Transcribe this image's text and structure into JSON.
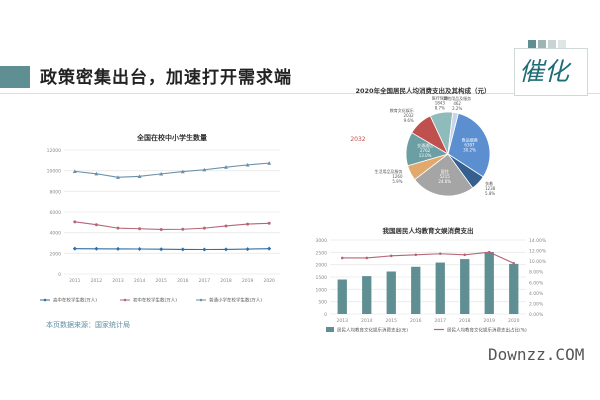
{
  "slide": {
    "title": "政策密集出台，加速打开需求端",
    "source": "本页数据来源：国家统计局",
    "logo": "催化",
    "watermark": "Downzz.COM",
    "colors": {
      "accent": "#5f8f93",
      "brand": "#1f6e76",
      "squares": [
        "#5f8f93",
        "#9fb4b5",
        "#c8d4d4",
        "#dfe6e6"
      ]
    }
  },
  "chart_data": [
    {
      "type": "line",
      "title": "全国在校中小学生数量",
      "x": [
        "2011",
        "2012",
        "2013",
        "2014",
        "2015",
        "2016",
        "2017",
        "2018",
        "2019",
        "2020"
      ],
      "ylim": [
        0,
        12000
      ],
      "yticks": [
        "0",
        "2000",
        "4000",
        "6000",
        "8000",
        "10000",
        "12000"
      ],
      "grid": true,
      "legend_position": "bottom",
      "series": [
        {
          "name": "高中在校学生数(万人)",
          "color": "#2f6fa7",
          "marker": "diamond",
          "values": [
            2450,
            2440,
            2430,
            2420,
            2400,
            2380,
            2370,
            2380,
            2410,
            2450
          ]
        },
        {
          "name": "初中在校学生数(万人)",
          "color": "#b56576",
          "marker": "circle",
          "values": [
            5050,
            4770,
            4440,
            4380,
            4310,
            4330,
            4440,
            4650,
            4830,
            4910
          ]
        },
        {
          "name": "普通小学在校学生数(万人)",
          "color": "#6b8fa8",
          "marker": "triangle",
          "values": [
            9930,
            9700,
            9360,
            9450,
            9690,
            9910,
            10090,
            10340,
            10560,
            10730
          ]
        }
      ]
    },
    {
      "type": "pie",
      "title": "2020年全国居民人均消费支出及其构成（元）",
      "center_total_label": "2032",
      "slices": [
        {
          "name": "食品烟酒",
          "amount": "6397",
          "percent": "30.2%",
          "value": 30.2,
          "color": "#5b8fd0"
        },
        {
          "name": "衣着",
          "amount": "1238",
          "percent": "5.8%",
          "value": 5.8,
          "color": "#355f8f"
        },
        {
          "name": "居住",
          "amount": "5215",
          "percent": "24.6%",
          "value": 24.6,
          "color": "#a5a5a5"
        },
        {
          "name": "生活用品及服务",
          "amount": "1260",
          "percent": "5.9%",
          "value": 5.9,
          "color": "#e2a86d"
        },
        {
          "name": "交通通信",
          "amount": "2762",
          "percent": "13.0%",
          "value": 13.0,
          "color": "#6c9fa3"
        },
        {
          "name": "教育文化娱乐",
          "amount": "2032",
          "percent": "9.6%",
          "value": 9.6,
          "color": "#c0504d"
        },
        {
          "name": "医疗保健",
          "amount": "1843",
          "percent": "8.7%",
          "value": 8.7,
          "color": "#8fbcbb"
        },
        {
          "name": "其他用品及服务",
          "amount": "462",
          "percent": "2.2%",
          "value": 2.2,
          "color": "#c7d6e8"
        }
      ]
    },
    {
      "type": "bar",
      "title": "我国居民人均教育文娱消费支出",
      "categories": [
        "2013",
        "2014",
        "2015",
        "2016",
        "2017",
        "2018",
        "2019",
        "2020"
      ],
      "ylim": [
        0,
        3000
      ],
      "yticks": [
        "0",
        "500",
        "1000",
        "1500",
        "2000",
        "2500",
        "3000"
      ],
      "y2lim": [
        0,
        14
      ],
      "y2ticks": [
        "0.00%",
        "2.00%",
        "4.00%",
        "6.00%",
        "8.00%",
        "10.00%",
        "12.00%",
        "14.00%"
      ],
      "grid": true,
      "legend_position": "bottom",
      "series": [
        {
          "name": "居民人均教育文化娱乐消费支出(元)",
          "kind": "bar",
          "axis": "left",
          "color": "#5f8f93",
          "values": [
            1398,
            1536,
            1723,
            1915,
            2086,
            2226,
            2513,
            2032
          ]
        },
        {
          "name": "居民人均教育文化娱乐消费支出占比(%)",
          "kind": "line",
          "axis": "right",
          "color": "#b56576",
          "values": [
            10.6,
            10.6,
            11.0,
            11.2,
            11.4,
            11.2,
            11.7,
            9.6
          ]
        }
      ]
    }
  ]
}
